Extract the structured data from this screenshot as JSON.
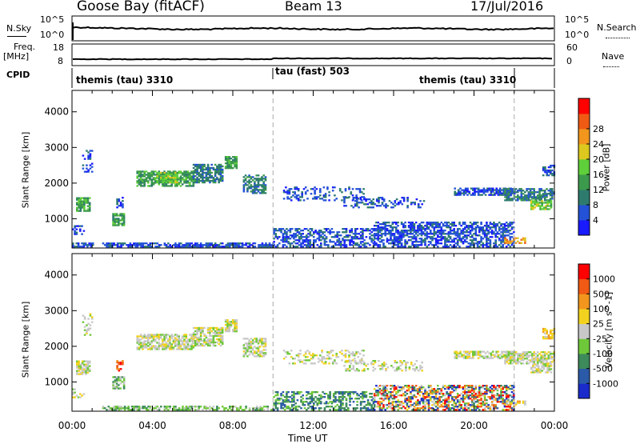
{
  "header": {
    "station": "Goose Bay (fitACF)",
    "beam": "Beam 13",
    "date": "17/Jul/2016"
  },
  "noise_panel": {
    "left_label": "N.Sky",
    "left_ticks": [
      "10^5",
      "10^0"
    ],
    "right_label": "N.Search",
    "right_ticks": [
      "10^5",
      "10^0"
    ],
    "right_line_style": "dotted"
  },
  "freq_panel": {
    "left_label_1": "Freq.",
    "left_label_2": "[MHz]",
    "left_ticks": [
      "18",
      "8"
    ],
    "right_label": "Nave",
    "right_ticks": [
      "60",
      "0"
    ],
    "right_line_style": "dotted"
  },
  "cpid_panel": {
    "label": "CPID",
    "segments": [
      {
        "name": "themis (tau) 3310",
        "start_hour": 0,
        "end_hour": 10
      },
      {
        "name": "tau (fast) 503",
        "start_hour": 10,
        "end_hour": 22
      },
      {
        "name": "themis (tau) 3310",
        "start_hour": 22,
        "end_hour": 24
      }
    ]
  },
  "chart_data": [
    {
      "type": "heatmap",
      "parameter": "Power",
      "ylabel": "Slant Range [km]",
      "xlim_hours": [
        0,
        24
      ],
      "ylim": [
        180,
        4600
      ],
      "yticks": [
        1000,
        2000,
        3000,
        4000
      ],
      "xticks": [
        "00:00",
        "04:00",
        "08:00",
        "12:00",
        "16:00",
        "20:00",
        "00:00"
      ],
      "vertical_markers_hours": [
        10,
        22
      ],
      "colorbar": {
        "label": "Power [dB]",
        "ticks": [
          "4",
          "8",
          "12",
          "16",
          "20",
          "24",
          "28"
        ],
        "colors": [
          "#1a1aff",
          "#2452d6",
          "#2e7b6e",
          "#3c9a4c",
          "#5fcf3a",
          "#dcc81e",
          "#f2961e",
          "#ef5a14",
          "#ff0000"
        ]
      },
      "echo_regions": [
        {
          "x": [
            0.0,
            1.0
          ],
          "y": [
            200,
            300
          ],
          "level": 1,
          "density": 0.6
        },
        {
          "x": [
            0.2,
            0.9
          ],
          "y": [
            1200,
            1600
          ],
          "level": 3,
          "density": 0.8
        },
        {
          "x": [
            0.0,
            0.6
          ],
          "y": [
            550,
            800
          ],
          "level": 1,
          "density": 0.4
        },
        {
          "x": [
            0.5,
            1.0
          ],
          "y": [
            2300,
            2900
          ],
          "level": 1,
          "density": 0.3
        },
        {
          "x": [
            2.0,
            2.6
          ],
          "y": [
            800,
            1150
          ],
          "level": 3,
          "density": 0.7
        },
        {
          "x": [
            2.2,
            2.5
          ],
          "y": [
            1300,
            1600
          ],
          "level": 1,
          "density": 0.5
        },
        {
          "x": [
            3.2,
            6.0
          ],
          "y": [
            1900,
            2350
          ],
          "level": 3,
          "density": 0.75
        },
        {
          "x": [
            4.2,
            5.2
          ],
          "y": [
            2000,
            2300
          ],
          "level": 4,
          "density": 0.8
        },
        {
          "x": [
            6.0,
            7.5
          ],
          "y": [
            2000,
            2500
          ],
          "level": 2,
          "density": 0.7
        },
        {
          "x": [
            7.6,
            8.2
          ],
          "y": [
            2400,
            2750
          ],
          "level": 3,
          "density": 0.8
        },
        {
          "x": [
            8.5,
            9.6
          ],
          "y": [
            1700,
            2200
          ],
          "level": 2,
          "density": 0.6
        },
        {
          "x": [
            10.5,
            14.5
          ],
          "y": [
            1500,
            1900
          ],
          "level": 1,
          "density": 0.35
        },
        {
          "x": [
            13.5,
            17.5
          ],
          "y": [
            1300,
            1600
          ],
          "level": 1,
          "density": 0.3
        },
        {
          "x": [
            1.5,
            10.0
          ],
          "y": [
            200,
            320
          ],
          "level": 1,
          "density": 0.75
        },
        {
          "x": [
            10.0,
            15.0
          ],
          "y": [
            200,
            700
          ],
          "level": 1,
          "density": 0.5
        },
        {
          "x": [
            15.0,
            22.0
          ],
          "y": [
            200,
            900
          ],
          "level": 1,
          "density": 0.6
        },
        {
          "x": [
            19.0,
            22.0
          ],
          "y": [
            1650,
            1850
          ],
          "level": 1,
          "density": 0.7
        },
        {
          "x": [
            21.5,
            24.0
          ],
          "y": [
            1500,
            1850
          ],
          "level": 2,
          "density": 0.7
        },
        {
          "x": [
            22.8,
            23.8
          ],
          "y": [
            1250,
            1500
          ],
          "level": 4,
          "density": 0.7
        },
        {
          "x": [
            23.4,
            24.0
          ],
          "y": [
            2200,
            2500
          ],
          "level": 1,
          "density": 0.6
        },
        {
          "x": [
            21.5,
            22.5
          ],
          "y": [
            300,
            480
          ],
          "level": 6,
          "density": 0.5
        }
      ]
    },
    {
      "type": "heatmap",
      "parameter": "Velocity",
      "ylabel": "Slant Range [km]",
      "xlabel": "Time UT",
      "xlim_hours": [
        0,
        24
      ],
      "ylim": [
        180,
        4600
      ],
      "yticks": [
        1000,
        2000,
        3000,
        4000
      ],
      "xticks": [
        "00:00",
        "04:00",
        "08:00",
        "12:00",
        "16:00",
        "20:00",
        "00:00"
      ],
      "vertical_markers_hours": [
        10,
        22
      ],
      "colorbar": {
        "label": "Velocity [m s^-1]",
        "ticks": [
          "1000",
          "500",
          "100",
          "25",
          "-25",
          "-100",
          "-500",
          "-1000"
        ],
        "colors": [
          "#1a2bcc",
          "#2a5aa8",
          "#3d8a5a",
          "#6fc83a",
          "#c8c8c8",
          "#f2d21e",
          "#f2961e",
          "#f05a14",
          "#ff0000"
        ]
      },
      "echo_regions": [
        {
          "x": [
            0.2,
            0.9
          ],
          "y": [
            1200,
            1600
          ],
          "level": 4,
          "density": 0.8
        },
        {
          "x": [
            0.0,
            0.6
          ],
          "y": [
            550,
            800
          ],
          "level": 4,
          "density": 0.4
        },
        {
          "x": [
            0.5,
            1.0
          ],
          "y": [
            2300,
            2900
          ],
          "level": 4,
          "density": 0.3
        },
        {
          "x": [
            2.0,
            2.6
          ],
          "y": [
            800,
            1150
          ],
          "level": 3,
          "density": 0.7
        },
        {
          "x": [
            2.2,
            2.5
          ],
          "y": [
            1300,
            1600
          ],
          "level": 7,
          "density": 0.5
        },
        {
          "x": [
            3.2,
            6.0
          ],
          "y": [
            1900,
            2350
          ],
          "level": 4,
          "density": 0.75
        },
        {
          "x": [
            6.0,
            7.5
          ],
          "y": [
            2000,
            2500
          ],
          "level": 4,
          "density": 0.7
        },
        {
          "x": [
            7.6,
            8.2
          ],
          "y": [
            2400,
            2750
          ],
          "level": 4,
          "density": 0.8
        },
        {
          "x": [
            8.5,
            9.6
          ],
          "y": [
            1700,
            2200
          ],
          "level": 4,
          "density": 0.6
        },
        {
          "x": [
            10.5,
            14.5
          ],
          "y": [
            1500,
            1900
          ],
          "level": 4,
          "density": 0.35
        },
        {
          "x": [
            13.5,
            17.5
          ],
          "y": [
            1300,
            1600
          ],
          "level": 4,
          "density": 0.3
        },
        {
          "x": [
            1.5,
            10.0
          ],
          "y": [
            200,
            320
          ],
          "level": 3,
          "density": 0.6
        },
        {
          "x": [
            10.0,
            15.0
          ],
          "y": [
            200,
            700
          ],
          "level": 2,
          "density": 0.45
        },
        {
          "x": [
            15.0,
            22.0
          ],
          "y": [
            200,
            900
          ],
          "level": 1,
          "density": 0.6
        },
        {
          "x": [
            19.0,
            22.0
          ],
          "y": [
            1650,
            1850
          ],
          "level": 4,
          "density": 0.7
        },
        {
          "x": [
            21.5,
            24.0
          ],
          "y": [
            1500,
            1850
          ],
          "level": 4,
          "density": 0.7
        },
        {
          "x": [
            22.8,
            23.8
          ],
          "y": [
            1250,
            1500
          ],
          "level": 4,
          "density": 0.7
        },
        {
          "x": [
            23.4,
            24.0
          ],
          "y": [
            2200,
            2500
          ],
          "level": 5,
          "density": 0.6
        },
        {
          "x": [
            21.5,
            22.5
          ],
          "y": [
            300,
            480
          ],
          "level": 5,
          "density": 0.5
        }
      ]
    }
  ]
}
